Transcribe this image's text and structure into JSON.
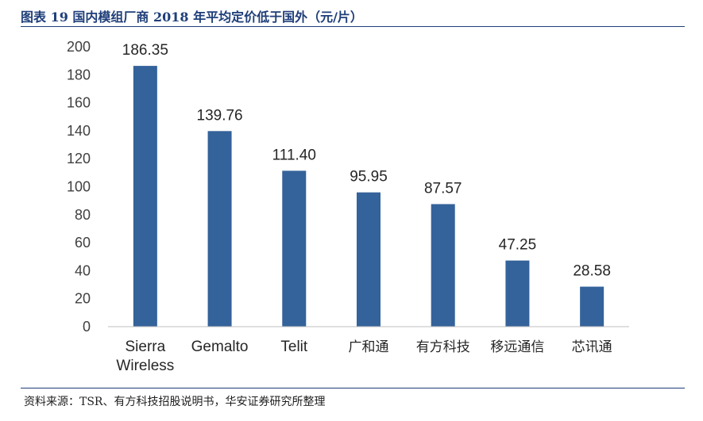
{
  "figure": {
    "title": "图表 19 国内模组厂商 2018 年平均定价低于国外（元/片）",
    "source": "资料来源：TSR、有方科技招股说明书，华安证券研究所整理"
  },
  "chart_data": {
    "type": "bar",
    "title": "",
    "xlabel": "",
    "ylabel": "",
    "categories": [
      "Sierra Wireless",
      "Gemalto",
      "Telit",
      "广和通",
      "有方科技",
      "移远通信",
      "芯讯通"
    ],
    "category_lines": [
      [
        "Sierra",
        "Wireless"
      ],
      [
        "Gemalto"
      ],
      [
        "Telit"
      ],
      [
        "广和通"
      ],
      [
        "有方科技"
      ],
      [
        "移远通信"
      ],
      [
        "芯讯通"
      ]
    ],
    "values": [
      186.35,
      139.76,
      111.4,
      95.95,
      87.57,
      47.25,
      28.58
    ],
    "value_labels": [
      "186.35",
      "139.76",
      "111.40",
      "95.95",
      "87.57",
      "47.25",
      "28.58"
    ],
    "ylim": [
      0,
      200
    ],
    "yticks": [
      0,
      20,
      40,
      60,
      80,
      100,
      120,
      140,
      160,
      180,
      200
    ],
    "grid": false,
    "legend": "none",
    "bar_color": "#34629a",
    "axis_color": "#bfbfbf"
  }
}
